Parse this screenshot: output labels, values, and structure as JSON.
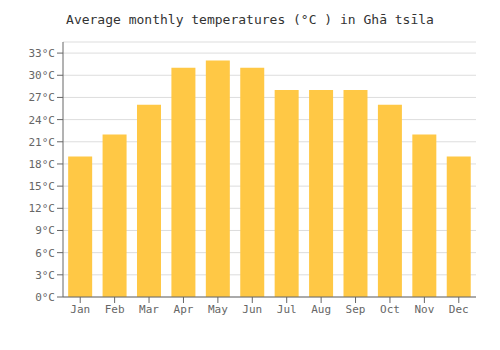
{
  "chart_data": {
    "type": "bar",
    "title": "Average monthly temperatures (°C ) in Ghā tsīla",
    "categories": [
      "Jan",
      "Feb",
      "Mar",
      "Apr",
      "May",
      "Jun",
      "Jul",
      "Aug",
      "Sep",
      "Oct",
      "Nov",
      "Dec"
    ],
    "values": [
      19,
      22,
      26,
      31,
      32,
      31,
      28,
      28,
      28,
      26,
      22,
      19
    ],
    "color": "#FFC845",
    "ylim": [
      0,
      34.5
    ],
    "yticks": [
      {
        "value": 0,
        "label": "0°C"
      },
      {
        "value": 3,
        "label": "3°C"
      },
      {
        "value": 6,
        "label": "6°C"
      },
      {
        "value": 9,
        "label": "9°C"
      },
      {
        "value": 12,
        "label": "12°C"
      },
      {
        "value": 15,
        "label": "15°C"
      },
      {
        "value": 18,
        "label": "18°C"
      },
      {
        "value": 21,
        "label": "21°C"
      },
      {
        "value": 24,
        "label": "24°C"
      },
      {
        "value": 27,
        "label": "27°C"
      },
      {
        "value": 30,
        "label": "30°C"
      },
      {
        "value": 33,
        "label": "33°C"
      }
    ],
    "grid": true
  }
}
